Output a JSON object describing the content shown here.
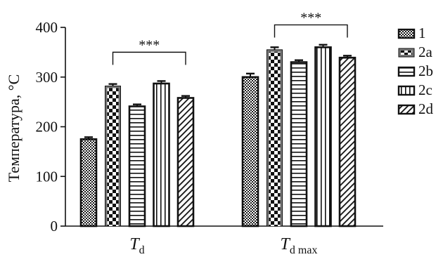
{
  "chart_data": {
    "type": "bar",
    "ylabel": "Температура, °C",
    "ylim": [
      0,
      400
    ],
    "yticks": [
      0,
      100,
      200,
      300,
      400
    ],
    "categories": [
      {
        "main": "T",
        "sub": "d"
      },
      {
        "main": "T",
        "sub": "d max"
      }
    ],
    "series": [
      {
        "name": "1",
        "pattern": "checker-fine",
        "values": [
          175,
          300
        ],
        "errors": [
          4,
          7
        ]
      },
      {
        "name": "2a",
        "pattern": "checker-bold",
        "values": [
          282,
          355
        ],
        "errors": [
          4,
          5
        ]
      },
      {
        "name": "2b",
        "pattern": "horizontal",
        "values": [
          241,
          330
        ],
        "errors": [
          4,
          4
        ]
      },
      {
        "name": "2c",
        "pattern": "vertical",
        "values": [
          287,
          360
        ],
        "errors": [
          5,
          5
        ]
      },
      {
        "name": "2d",
        "pattern": "diagonal",
        "values": [
          258,
          339
        ],
        "errors": [
          4,
          4
        ]
      }
    ],
    "annotations": [
      {
        "text": "***",
        "category_index": 0,
        "from_series": 1,
        "to_series": 4,
        "y": 350
      },
      {
        "text": "***",
        "category_index": 1,
        "from_series": 1,
        "to_series": 4,
        "y": 405
      }
    ],
    "legend_position": "right",
    "grid": false,
    "colors": {
      "bar_edge": "#111111",
      "gray_face": "#777777"
    }
  }
}
